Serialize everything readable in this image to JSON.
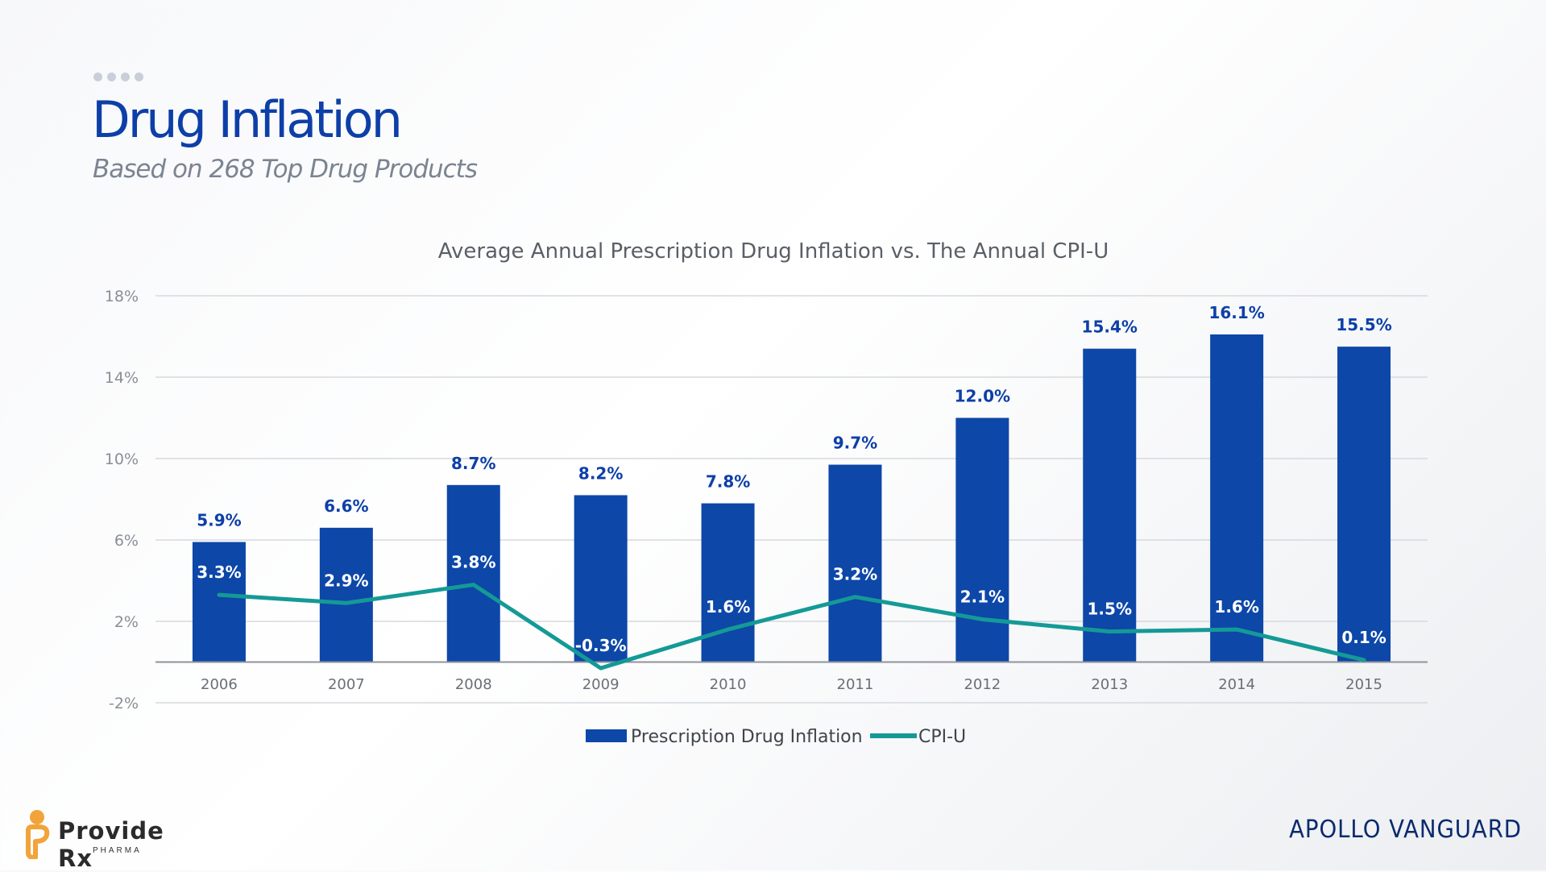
{
  "header": {
    "title": "Drug Inflation",
    "subtitle": "Based on 268 Top Drug Products"
  },
  "chart_data": {
    "type": "bar",
    "title": "Average Annual Prescription Drug Inflation vs. The Annual CPI-U",
    "categories": [
      "2006",
      "2007",
      "2008",
      "2009",
      "2010",
      "2011",
      "2012",
      "2013",
      "2014",
      "2015"
    ],
    "series": [
      {
        "name": "Prescription Drug Inflation",
        "type": "bar",
        "color": "#0d47a8",
        "values": [
          5.9,
          6.6,
          8.7,
          8.2,
          7.8,
          9.7,
          12.0,
          15.4,
          16.1,
          15.5
        ],
        "labels": [
          "5.9%",
          "6.6%",
          "8.7%",
          "8.2%",
          "7.8%",
          "9.7%",
          "12.0%",
          "15.4%",
          "16.1%",
          "15.5%"
        ]
      },
      {
        "name": "CPI-U",
        "type": "line",
        "color": "#149a96",
        "values": [
          3.3,
          2.9,
          3.8,
          -0.3,
          1.6,
          3.2,
          2.1,
          1.5,
          1.6,
          0.1
        ],
        "labels": [
          "3.3%",
          "2.9%",
          "3.8%",
          "-0.3%",
          "1.6%",
          "3.2%",
          "2.1%",
          "1.5%",
          "1.6%",
          "0.1%"
        ]
      }
    ],
    "yticks": [
      "18%",
      "14%",
      "10%",
      "6%",
      "2%",
      "-2%"
    ],
    "ytick_values": [
      18,
      14,
      10,
      6,
      2,
      -2
    ],
    "ylim": [
      -2,
      18
    ],
    "grid": true,
    "legend": "bottom"
  },
  "footer": {
    "left_logo_name": "Provide",
    "left_logo_rx": "Rx",
    "left_logo_sub": "PHARMA",
    "right_logo": "APOLLO VANGUARD"
  }
}
